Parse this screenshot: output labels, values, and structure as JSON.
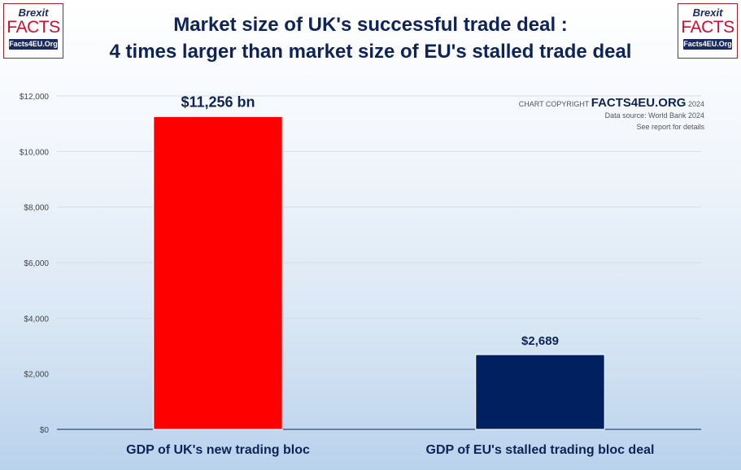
{
  "logo": {
    "line1": "Brexit",
    "line2": "FACTS",
    "line3": "Facts4EU.Org"
  },
  "title_line1": "Market size of UK's successful trade deal :",
  "title_line2": "4 times larger than market size of EU's stalled trade deal",
  "copyright": {
    "prefix": "CHART COPYRIGHT",
    "site": "FACTS4EU.ORG",
    "year": "2024",
    "source": "Data source: World Bank 2024",
    "note": "See report for details"
  },
  "colors": {
    "uk_bar": "#ff0000",
    "eu_bar": "#002060",
    "text": "#0e2356",
    "grid": "#d5dde6"
  },
  "chart_data": {
    "type": "bar",
    "categories": [
      "GDP of UK's new trading bloc",
      "GDP of EU's stalled trading bloc deal"
    ],
    "values": [
      11256,
      2689
    ],
    "data_labels": [
      "$11,256 bn",
      "$2,689"
    ],
    "bar_colors": [
      "#ff0000",
      "#002060"
    ],
    "title": "Market size of UK's successful trade deal : 4 times larger than market size of EU's stalled trade deal",
    "ylim": [
      0,
      12000
    ],
    "yticks": [
      0,
      2000,
      4000,
      6000,
      8000,
      10000,
      12000
    ],
    "ytick_labels": [
      "$0",
      "$2,000",
      "$4,000",
      "$6,000",
      "$8,000",
      "$10,000",
      "$12,000"
    ],
    "grid": true,
    "legend": "none"
  }
}
